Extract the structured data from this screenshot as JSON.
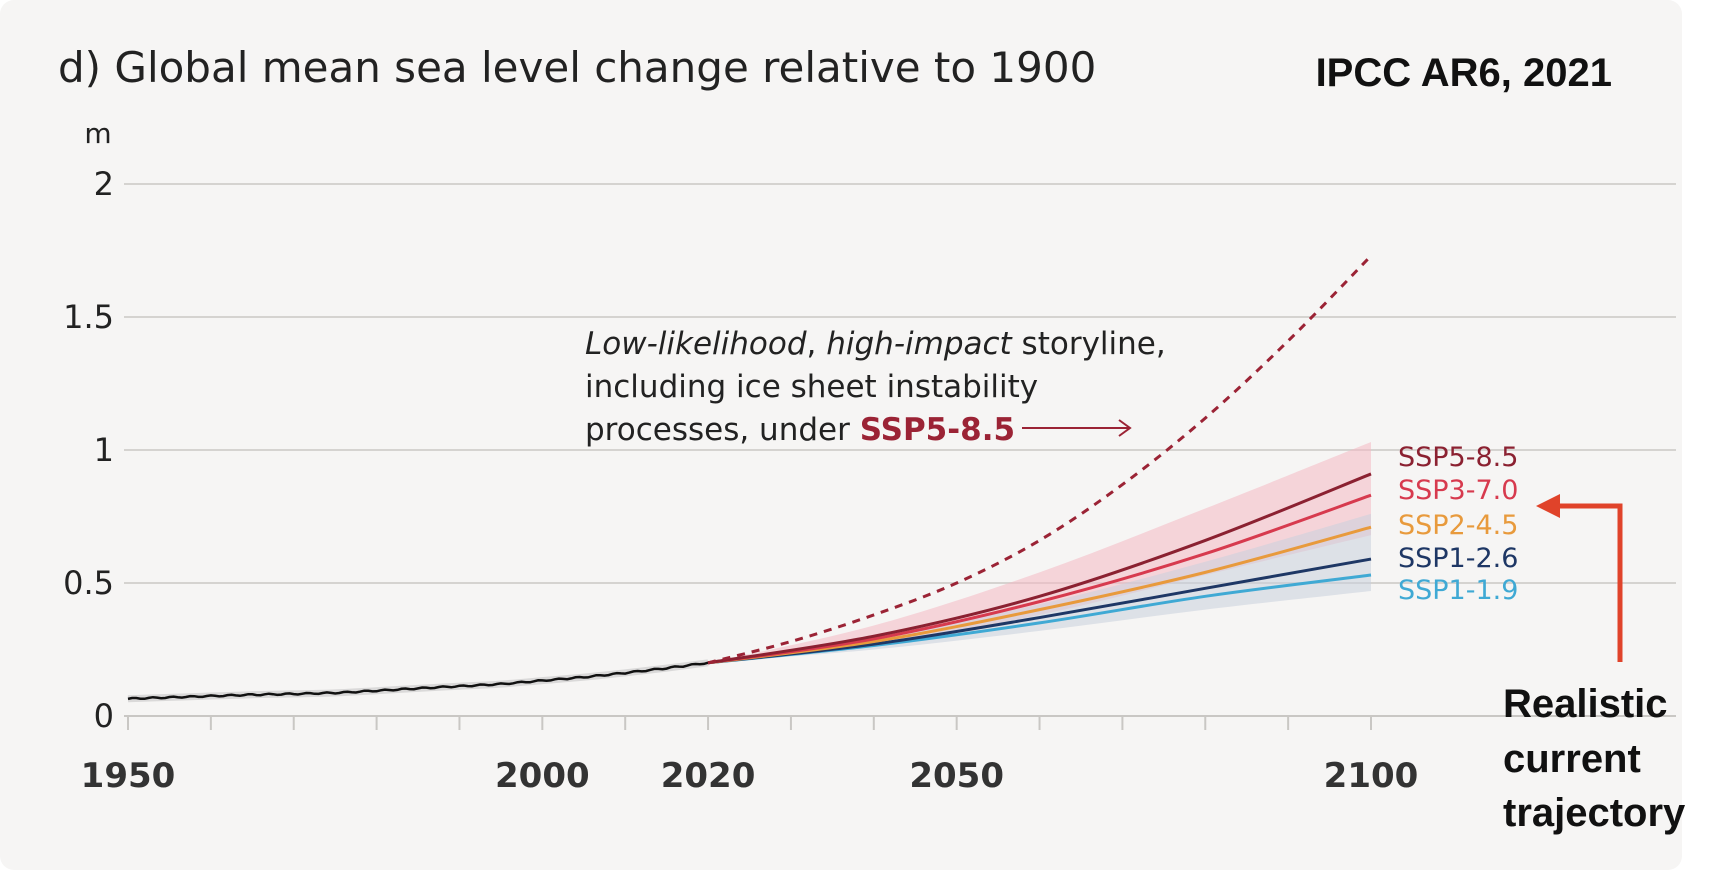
{
  "chart_data": {
    "type": "line",
    "title": "d) Global mean sea level change relative to 1900",
    "credit": "IPCC AR6, 2021",
    "ylabel": "m",
    "xlim": [
      1950,
      2100
    ],
    "ylim": [
      0,
      2
    ],
    "x_ticks": [
      1950,
      2000,
      2020,
      2050,
      2100
    ],
    "y_ticks": [
      0,
      0.5,
      1,
      1.5,
      2
    ],
    "y_tick_labels": [
      "0",
      "0.5",
      "1",
      "1.5",
      "2"
    ],
    "grid": true,
    "historical": {
      "x": [
        1950,
        1955,
        1960,
        1965,
        1970,
        1975,
        1980,
        1985,
        1990,
        1995,
        2000,
        2005,
        2010,
        2015,
        2020
      ],
      "y": [
        0.065,
        0.07,
        0.075,
        0.08,
        0.083,
        0.087,
        0.095,
        0.104,
        0.112,
        0.12,
        0.133,
        0.146,
        0.162,
        0.18,
        0.2
      ],
      "color": "#111111"
    },
    "storyline": {
      "name": "Low-likelihood, high-impact storyline under SSP5-8.5",
      "x": [
        2020,
        2030,
        2040,
        2050,
        2060,
        2070,
        2080,
        2090,
        2100
      ],
      "y": [
        0.2,
        0.28,
        0.38,
        0.5,
        0.66,
        0.87,
        1.12,
        1.41,
        1.73
      ],
      "color": "#9b2335"
    },
    "series": [
      {
        "name": "SSP5-8.5",
        "color": "#8b2131",
        "x": [
          2020,
          2040,
          2060,
          2080,
          2100
        ],
        "y": [
          0.2,
          0.3,
          0.45,
          0.66,
          0.91
        ]
      },
      {
        "name": "SSP3-7.0",
        "color": "#d73a4e",
        "x": [
          2020,
          2040,
          2060,
          2080,
          2100
        ],
        "y": [
          0.2,
          0.29,
          0.43,
          0.61,
          0.83
        ]
      },
      {
        "name": "SSP2-4.5",
        "color": "#e89a3c",
        "x": [
          2020,
          2040,
          2060,
          2080,
          2100
        ],
        "y": [
          0.2,
          0.28,
          0.4,
          0.54,
          0.71
        ]
      },
      {
        "name": "SSP1-2.6",
        "color": "#1e3765",
        "x": [
          2020,
          2040,
          2060,
          2080,
          2100
        ],
        "y": [
          0.2,
          0.27,
          0.37,
          0.48,
          0.59
        ]
      },
      {
        "name": "SSP1-1.9",
        "color": "#3fa9d4",
        "x": [
          2020,
          2040,
          2060,
          2080,
          2100
        ],
        "y": [
          0.2,
          0.265,
          0.35,
          0.45,
          0.53
        ]
      }
    ],
    "bands": [
      {
        "color": "#f4b8c3",
        "x": [
          2020,
          2040,
          2060,
          2080,
          2100
        ],
        "low": [
          0.2,
          0.27,
          0.38,
          0.53,
          0.68
        ],
        "high": [
          0.2,
          0.34,
          0.54,
          0.78,
          1.03
        ]
      },
      {
        "color": "#c9cfdc",
        "x": [
          2020,
          2040,
          2060,
          2080,
          2100
        ],
        "low": [
          0.2,
          0.25,
          0.32,
          0.4,
          0.47
        ],
        "high": [
          0.2,
          0.3,
          0.42,
          0.58,
          0.76
        ]
      }
    ],
    "annotation": {
      "line1_italic1": "Low-likelihood",
      "line1_sep": ", ",
      "line1_italic2": "high-impact",
      "line1_rest": " storyline,",
      "line2": "including ice sheet instability",
      "line3_prefix": "processes, under ",
      "line3_highlight": "SSP5-8.5"
    },
    "callout": {
      "lines": [
        "Realistic",
        "current",
        "trajectory"
      ],
      "color": "#e0432a",
      "points_to": "SSP3-7.0"
    }
  }
}
